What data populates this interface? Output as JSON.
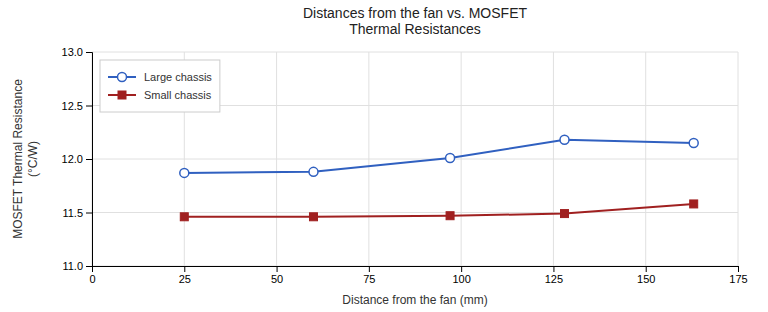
{
  "chart_data": {
    "type": "line",
    "title": "Distances from the fan vs. MOSFET\nThermal Resistances",
    "x_label": "Distance from the fan (mm)",
    "y_label": "MOSFET Thermal Resistance\n(°C/W)",
    "x": [
      25,
      60,
      97,
      128,
      163
    ],
    "series": [
      {
        "name": "Large chassis",
        "color": "#3060c0",
        "marker": "circle",
        "values": [
          11.87,
          11.88,
          12.01,
          12.18,
          12.15
        ]
      },
      {
        "name": "Small chassis",
        "color": "#a02020",
        "marker": "square",
        "values": [
          11.46,
          11.46,
          11.47,
          11.49,
          11.58
        ]
      }
    ],
    "xlim": [
      0,
      175
    ],
    "ylim": [
      11.0,
      13.0
    ],
    "xticks": [
      0,
      25,
      50,
      75,
      100,
      125,
      150,
      175
    ],
    "yticks": [
      {
        "value": 11.0,
        "label": "11.0"
      },
      11.5,
      {
        "value": 12.0,
        "label": "12.0"
      },
      12.5,
      {
        "value": 13.0,
        "label": "13.0"
      }
    ],
    "grid": true,
    "legend": "top-left"
  }
}
